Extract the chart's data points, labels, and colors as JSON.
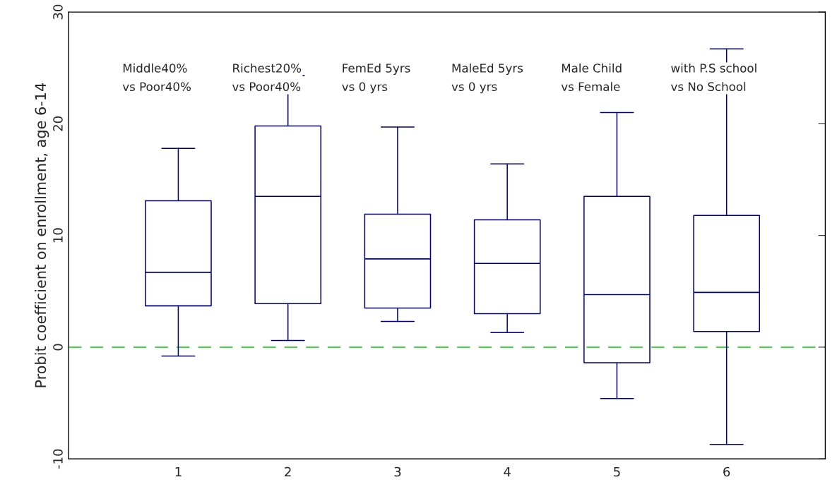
{
  "chart_data": {
    "type": "box",
    "ylabel": "Probit coefficient on enrollment, age 6-14",
    "x": [
      1,
      2,
      3,
      4,
      5,
      6
    ],
    "boxes": [
      {
        "low": -0.8,
        "q1": 3.7,
        "median": 6.7,
        "q3": 13.1,
        "high": 17.8
      },
      {
        "low": 0.6,
        "q1": 3.9,
        "median": 13.5,
        "q3": 19.8,
        "high": 24.3
      },
      {
        "low": 2.3,
        "q1": 3.5,
        "median": 7.9,
        "q3": 11.9,
        "high": 19.7
      },
      {
        "low": 1.3,
        "q1": 3.0,
        "median": 7.5,
        "q3": 11.4,
        "high": 16.4
      },
      {
        "low": -4.6,
        "q1": -1.4,
        "median": 4.7,
        "q3": 13.5,
        "high": 21.0
      },
      {
        "low": -8.7,
        "q1": 1.4,
        "median": 4.9,
        "q3": 11.8,
        "high": 26.7
      }
    ],
    "color": "#00007f",
    "xlim": [
      0,
      6.9
    ],
    "xticks": [
      1,
      2,
      3,
      4,
      5,
      6
    ],
    "ylim": [
      -10,
      30
    ],
    "yticks": [
      -10,
      0,
      10,
      20,
      30
    ],
    "ref_lines": [
      {
        "axis": "y",
        "value": 0,
        "color": "#00cc00",
        "line_style": "dashed"
      }
    ],
    "annotations": [
      "Middle40%\nvs Poor40%",
      "Richest20%\nvs Poor40%",
      "FemEd 5yrs\nvs 0 yrs",
      "MaleEd 5yrs\nvs 0 yrs",
      "Male Child\nvs Female",
      "with P.S school\nvs No School"
    ],
    "grid": false
  }
}
